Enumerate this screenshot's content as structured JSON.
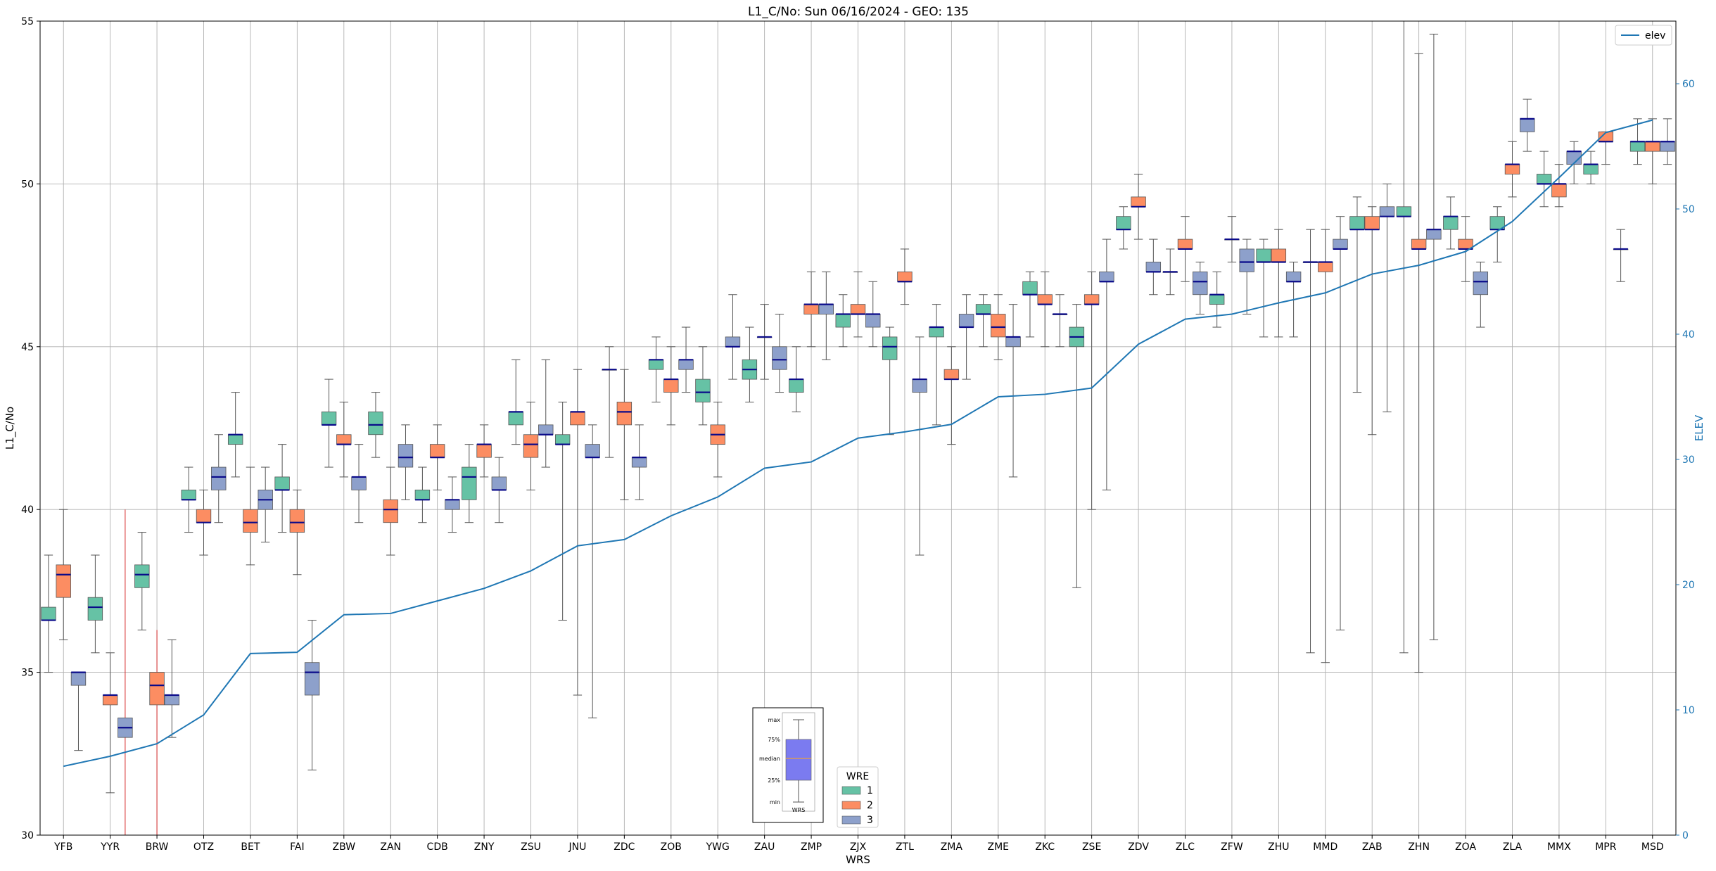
{
  "chart_data": {
    "type": "box",
    "title": "L1_C/No: Sun 06/16/2024 - GEO: 135",
    "xlabel": "WRS",
    "ylabel": "L1_C/No",
    "y2label": "ELEV",
    "ylim": [
      30,
      55
    ],
    "y2lim": [
      0,
      65
    ],
    "yticks": [
      30,
      35,
      40,
      45,
      50,
      55
    ],
    "y2ticks": [
      0,
      10,
      20,
      30,
      40,
      50,
      60
    ],
    "grid": true,
    "categories": [
      "YFB",
      "YYR",
      "BRW",
      "OTZ",
      "BET",
      "FAI",
      "ZBW",
      "ZAN",
      "CDB",
      "ZNY",
      "ZSU",
      "JNU",
      "ZDC",
      "ZOB",
      "YWG",
      "ZAU",
      "ZMP",
      "ZJX",
      "ZTL",
      "ZMA",
      "ZME",
      "ZKC",
      "ZSE",
      "ZDV",
      "ZLC",
      "ZFW",
      "ZHU",
      "MMD",
      "ZAB",
      "ZHN",
      "ZOA",
      "ZLA",
      "MMX",
      "MPR",
      "MSD"
    ],
    "wre_legend": {
      "title": "WRE",
      "entries": [
        "1",
        "2",
        "3"
      ],
      "placement": "lower-center"
    },
    "wre_colors": {
      "1": "#66c2a5",
      "2": "#fc8d62",
      "3": "#8da0cb"
    },
    "elev_legend": {
      "entries": [
        "elev"
      ],
      "placement": "top-right"
    },
    "elev_color": "#1f77b4",
    "boxes": [
      {
        "cat": "YFB",
        "wre": "1",
        "min": 35.0,
        "q1": 36.6,
        "median": 36.6,
        "q3": 37.0,
        "max": 38.6
      },
      {
        "cat": "YFB",
        "wre": "2",
        "min": 36.0,
        "q1": 37.3,
        "median": 38.0,
        "q3": 38.3,
        "max": 40.0
      },
      {
        "cat": "YFB",
        "wre": "3",
        "min": 32.6,
        "q1": 34.6,
        "median": 35.0,
        "q3": 35.0,
        "max": 35.0
      },
      {
        "cat": "YYR",
        "wre": "1",
        "min": 35.6,
        "q1": 36.6,
        "median": 37.0,
        "q3": 37.3,
        "max": 38.6
      },
      {
        "cat": "YYR",
        "wre": "2",
        "min": 31.3,
        "q1": 34.0,
        "median": 34.3,
        "q3": 34.3,
        "max": 35.6
      },
      {
        "cat": "YYR",
        "wre": "3",
        "min": 30.0,
        "q1": 33.0,
        "median": 33.3,
        "q3": 33.6,
        "max": 40.0,
        "outlier_whisker": true
      },
      {
        "cat": "BRW",
        "wre": "1",
        "min": 36.3,
        "q1": 37.6,
        "median": 38.0,
        "q3": 38.3,
        "max": 39.3
      },
      {
        "cat": "BRW",
        "wre": "2",
        "min": 30.0,
        "q1": 34.0,
        "median": 34.6,
        "q3": 35.0,
        "max": 36.3,
        "outlier_whisker": true
      },
      {
        "cat": "BRW",
        "wre": "3",
        "min": 33.0,
        "q1": 34.0,
        "median": 34.3,
        "q3": 34.3,
        "max": 36.0
      },
      {
        "cat": "OTZ",
        "wre": "1",
        "min": 39.3,
        "q1": 40.3,
        "median": 40.3,
        "q3": 40.6,
        "max": 41.3
      },
      {
        "cat": "OTZ",
        "wre": "2",
        "min": 38.6,
        "q1": 39.6,
        "median": 39.6,
        "q3": 40.0,
        "max": 40.6
      },
      {
        "cat": "OTZ",
        "wre": "3",
        "min": 39.6,
        "q1": 40.6,
        "median": 41.0,
        "q3": 41.3,
        "max": 42.3
      },
      {
        "cat": "BET",
        "wre": "1",
        "min": 41.0,
        "q1": 42.0,
        "median": 42.3,
        "q3": 42.3,
        "max": 43.6
      },
      {
        "cat": "BET",
        "wre": "2",
        "min": 38.3,
        "q1": 39.3,
        "median": 39.6,
        "q3": 40.0,
        "max": 41.3
      },
      {
        "cat": "BET",
        "wre": "3",
        "min": 39.0,
        "q1": 40.0,
        "median": 40.3,
        "q3": 40.6,
        "max": 41.3
      },
      {
        "cat": "FAI",
        "wre": "1",
        "min": 39.3,
        "q1": 40.6,
        "median": 40.6,
        "q3": 41.0,
        "max": 42.0
      },
      {
        "cat": "FAI",
        "wre": "2",
        "min": 38.0,
        "q1": 39.3,
        "median": 39.6,
        "q3": 40.0,
        "max": 40.6
      },
      {
        "cat": "FAI",
        "wre": "3",
        "min": 32.0,
        "q1": 34.3,
        "median": 35.0,
        "q3": 35.3,
        "max": 36.6
      },
      {
        "cat": "ZBW",
        "wre": "1",
        "min": 41.3,
        "q1": 42.6,
        "median": 42.6,
        "q3": 43.0,
        "max": 44.0
      },
      {
        "cat": "ZBW",
        "wre": "2",
        "min": 41.0,
        "q1": 42.0,
        "median": 42.0,
        "q3": 42.3,
        "max": 43.3
      },
      {
        "cat": "ZBW",
        "wre": "3",
        "min": 39.6,
        "q1": 40.6,
        "median": 41.0,
        "q3": 41.0,
        "max": 42.0
      },
      {
        "cat": "ZAN",
        "wre": "1",
        "min": 41.6,
        "q1": 42.3,
        "median": 42.6,
        "q3": 43.0,
        "max": 43.6
      },
      {
        "cat": "ZAN",
        "wre": "2",
        "min": 38.6,
        "q1": 39.6,
        "median": 40.0,
        "q3": 40.3,
        "max": 41.3
      },
      {
        "cat": "ZAN",
        "wre": "3",
        "min": 40.3,
        "q1": 41.3,
        "median": 41.6,
        "q3": 42.0,
        "max": 42.6
      },
      {
        "cat": "CDB",
        "wre": "1",
        "min": 39.6,
        "q1": 40.3,
        "median": 40.3,
        "q3": 40.6,
        "max": 41.3
      },
      {
        "cat": "CDB",
        "wre": "2",
        "min": 40.6,
        "q1": 41.6,
        "median": 41.6,
        "q3": 42.0,
        "max": 42.6
      },
      {
        "cat": "CDB",
        "wre": "3",
        "min": 39.3,
        "q1": 40.0,
        "median": 40.3,
        "q3": 40.3,
        "max": 41.0
      },
      {
        "cat": "ZNY",
        "wre": "1",
        "min": 39.6,
        "q1": 40.3,
        "median": 41.0,
        "q3": 41.3,
        "max": 42.0
      },
      {
        "cat": "ZNY",
        "wre": "2",
        "min": 41.0,
        "q1": 41.6,
        "median": 42.0,
        "q3": 42.0,
        "max": 42.6
      },
      {
        "cat": "ZNY",
        "wre": "3",
        "min": 39.6,
        "q1": 40.6,
        "median": 40.6,
        "q3": 41.0,
        "max": 41.6
      },
      {
        "cat": "ZSU",
        "wre": "1",
        "min": 42.0,
        "q1": 42.6,
        "median": 43.0,
        "q3": 43.0,
        "max": 44.6
      },
      {
        "cat": "ZSU",
        "wre": "2",
        "min": 40.6,
        "q1": 41.6,
        "median": 42.0,
        "q3": 42.3,
        "max": 43.3
      },
      {
        "cat": "ZSU",
        "wre": "3",
        "min": 41.3,
        "q1": 42.3,
        "median": 42.3,
        "q3": 42.6,
        "max": 44.6
      },
      {
        "cat": "JNU",
        "wre": "1",
        "min": 36.6,
        "q1": 42.0,
        "median": 42.0,
        "q3": 42.3,
        "max": 43.3
      },
      {
        "cat": "JNU",
        "wre": "2",
        "min": 34.3,
        "q1": 42.6,
        "median": 43.0,
        "q3": 43.0,
        "max": 44.3
      },
      {
        "cat": "JNU",
        "wre": "3",
        "min": 33.6,
        "q1": 41.6,
        "median": 41.6,
        "q3": 42.0,
        "max": 42.6
      },
      {
        "cat": "ZDC",
        "wre": "1",
        "min": 41.6,
        "q1": 44.3,
        "median": 44.3,
        "q3": 44.3,
        "max": 45.0
      },
      {
        "cat": "ZDC",
        "wre": "2",
        "min": 40.3,
        "q1": 42.6,
        "median": 43.0,
        "q3": 43.3,
        "max": 44.3
      },
      {
        "cat": "ZDC",
        "wre": "3",
        "min": 40.3,
        "q1": 41.3,
        "median": 41.6,
        "q3": 41.6,
        "max": 42.6
      },
      {
        "cat": "ZOB",
        "wre": "1",
        "min": 43.3,
        "q1": 44.3,
        "median": 44.6,
        "q3": 44.6,
        "max": 45.3
      },
      {
        "cat": "ZOB",
        "wre": "2",
        "min": 42.6,
        "q1": 43.6,
        "median": 44.0,
        "q3": 44.0,
        "max": 45.0
      },
      {
        "cat": "ZOB",
        "wre": "3",
        "min": 43.6,
        "q1": 44.3,
        "median": 44.6,
        "q3": 44.6,
        "max": 45.6
      },
      {
        "cat": "YWG",
        "wre": "1",
        "min": 42.6,
        "q1": 43.3,
        "median": 43.6,
        "q3": 44.0,
        "max": 45.0
      },
      {
        "cat": "YWG",
        "wre": "2",
        "min": 41.0,
        "q1": 42.0,
        "median": 42.3,
        "q3": 42.6,
        "max": 43.3
      },
      {
        "cat": "YWG",
        "wre": "3",
        "min": 44.0,
        "q1": 45.0,
        "median": 45.0,
        "q3": 45.3,
        "max": 46.6
      },
      {
        "cat": "ZAU",
        "wre": "1",
        "min": 43.3,
        "q1": 44.0,
        "median": 44.3,
        "q3": 44.6,
        "max": 45.6
      },
      {
        "cat": "ZAU",
        "wre": "2",
        "min": 44.0,
        "q1": 45.3,
        "median": 45.3,
        "q3": 45.3,
        "max": 46.3
      },
      {
        "cat": "ZAU",
        "wre": "3",
        "min": 43.6,
        "q1": 44.3,
        "median": 44.6,
        "q3": 45.0,
        "max": 46.0
      },
      {
        "cat": "ZMP",
        "wre": "1",
        "min": 43.0,
        "q1": 43.6,
        "median": 44.0,
        "q3": 44.0,
        "max": 45.0
      },
      {
        "cat": "ZMP",
        "wre": "2",
        "min": 45.0,
        "q1": 46.0,
        "median": 46.3,
        "q3": 46.3,
        "max": 47.3
      },
      {
        "cat": "ZMP",
        "wre": "3",
        "min": 44.6,
        "q1": 46.0,
        "median": 46.3,
        "q3": 46.3,
        "max": 47.3
      },
      {
        "cat": "ZJX",
        "wre": "1",
        "min": 45.0,
        "q1": 45.6,
        "median": 46.0,
        "q3": 46.0,
        "max": 46.6
      },
      {
        "cat": "ZJX",
        "wre": "2",
        "min": 45.3,
        "q1": 46.0,
        "median": 46.0,
        "q3": 46.3,
        "max": 47.3
      },
      {
        "cat": "ZJX",
        "wre": "3",
        "min": 45.0,
        "q1": 45.6,
        "median": 46.0,
        "q3": 46.0,
        "max": 47.0
      },
      {
        "cat": "ZTL",
        "wre": "1",
        "min": 42.3,
        "q1": 44.6,
        "median": 45.0,
        "q3": 45.3,
        "max": 45.6
      },
      {
        "cat": "ZTL",
        "wre": "2",
        "min": 46.3,
        "q1": 47.0,
        "median": 47.0,
        "q3": 47.3,
        "max": 48.0
      },
      {
        "cat": "ZTL",
        "wre": "3",
        "min": 38.6,
        "q1": 43.6,
        "median": 44.0,
        "q3": 44.0,
        "max": 45.3
      },
      {
        "cat": "ZMA",
        "wre": "1",
        "min": 42.6,
        "q1": 45.3,
        "median": 45.6,
        "q3": 45.6,
        "max": 46.3
      },
      {
        "cat": "ZMA",
        "wre": "2",
        "min": 42.0,
        "q1": 44.0,
        "median": 44.0,
        "q3": 44.3,
        "max": 45.0
      },
      {
        "cat": "ZMA",
        "wre": "3",
        "min": 44.0,
        "q1": 45.6,
        "median": 45.6,
        "q3": 46.0,
        "max": 46.6
      },
      {
        "cat": "ZME",
        "wre": "1",
        "min": 45.0,
        "q1": 46.0,
        "median": 46.0,
        "q3": 46.3,
        "max": 46.6
      },
      {
        "cat": "ZME",
        "wre": "2",
        "min": 44.6,
        "q1": 45.3,
        "median": 45.6,
        "q3": 46.0,
        "max": 46.6
      },
      {
        "cat": "ZME",
        "wre": "3",
        "min": 41.0,
        "q1": 45.0,
        "median": 45.3,
        "q3": 45.3,
        "max": 46.3
      },
      {
        "cat": "ZKC",
        "wre": "1",
        "min": 45.3,
        "q1": 46.6,
        "median": 46.6,
        "q3": 47.0,
        "max": 47.3
      },
      {
        "cat": "ZKC",
        "wre": "2",
        "min": 45.0,
        "q1": 46.3,
        "median": 46.3,
        "q3": 46.6,
        "max": 47.3
      },
      {
        "cat": "ZKC",
        "wre": "3",
        "min": 45.0,
        "q1": 46.0,
        "median": 46.0,
        "q3": 46.0,
        "max": 46.6
      },
      {
        "cat": "ZSE",
        "wre": "1",
        "min": 37.6,
        "q1": 45.0,
        "median": 45.3,
        "q3": 45.6,
        "max": 46.3
      },
      {
        "cat": "ZSE",
        "wre": "2",
        "min": 40.0,
        "q1": 46.3,
        "median": 46.3,
        "q3": 46.6,
        "max": 47.3
      },
      {
        "cat": "ZSE",
        "wre": "3",
        "min": 40.6,
        "q1": 47.0,
        "median": 47.0,
        "q3": 47.3,
        "max": 48.3
      },
      {
        "cat": "ZDV",
        "wre": "1",
        "min": 48.0,
        "q1": 48.6,
        "median": 48.6,
        "q3": 49.0,
        "max": 49.3
      },
      {
        "cat": "ZDV",
        "wre": "2",
        "min": 48.3,
        "q1": 49.3,
        "median": 49.3,
        "q3": 49.6,
        "max": 50.3
      },
      {
        "cat": "ZDV",
        "wre": "3",
        "min": 46.6,
        "q1": 47.3,
        "median": 47.3,
        "q3": 47.6,
        "max": 48.3
      },
      {
        "cat": "ZLC",
        "wre": "1",
        "min": 46.6,
        "q1": 47.3,
        "median": 47.3,
        "q3": 47.3,
        "max": 48.0
      },
      {
        "cat": "ZLC",
        "wre": "2",
        "min": 47.0,
        "q1": 48.0,
        "median": 48.0,
        "q3": 48.3,
        "max": 49.0
      },
      {
        "cat": "ZLC",
        "wre": "3",
        "min": 46.0,
        "q1": 46.6,
        "median": 47.0,
        "q3": 47.3,
        "max": 47.6
      },
      {
        "cat": "ZFW",
        "wre": "1",
        "min": 45.6,
        "q1": 46.3,
        "median": 46.6,
        "q3": 46.6,
        "max": 47.3
      },
      {
        "cat": "ZFW",
        "wre": "2",
        "min": 47.6,
        "q1": 48.3,
        "median": 48.3,
        "q3": 48.3,
        "max": 49.0
      },
      {
        "cat": "ZFW",
        "wre": "3",
        "min": 46.0,
        "q1": 47.3,
        "median": 47.6,
        "q3": 48.0,
        "max": 48.3
      },
      {
        "cat": "ZHU",
        "wre": "1",
        "min": 45.3,
        "q1": 47.6,
        "median": 47.6,
        "q3": 48.0,
        "max": 48.3
      },
      {
        "cat": "ZHU",
        "wre": "2",
        "min": 45.3,
        "q1": 47.6,
        "median": 47.6,
        "q3": 48.0,
        "max": 48.6
      },
      {
        "cat": "ZHU",
        "wre": "3",
        "min": 45.3,
        "q1": 47.0,
        "median": 47.0,
        "q3": 47.3,
        "max": 47.6
      },
      {
        "cat": "MMD",
        "wre": "1",
        "min": 35.6,
        "q1": 47.6,
        "median": 47.6,
        "q3": 47.6,
        "max": 48.6
      },
      {
        "cat": "MMD",
        "wre": "2",
        "min": 35.3,
        "q1": 47.3,
        "median": 47.6,
        "q3": 47.6,
        "max": 48.6
      },
      {
        "cat": "MMD",
        "wre": "3",
        "min": 36.3,
        "q1": 48.0,
        "median": 48.0,
        "q3": 48.3,
        "max": 49.0
      },
      {
        "cat": "ZAB",
        "wre": "1",
        "min": 43.6,
        "q1": 48.6,
        "median": 48.6,
        "q3": 49.0,
        "max": 49.6
      },
      {
        "cat": "ZAB",
        "wre": "2",
        "min": 42.3,
        "q1": 48.6,
        "median": 48.6,
        "q3": 49.0,
        "max": 49.3
      },
      {
        "cat": "ZAB",
        "wre": "3",
        "min": 43.0,
        "q1": 49.0,
        "median": 49.0,
        "q3": 49.3,
        "max": 50.0
      },
      {
        "cat": "ZHN",
        "wre": "1",
        "min": 35.6,
        "q1": 49.0,
        "median": 49.0,
        "q3": 49.3,
        "max": 55.0
      },
      {
        "cat": "ZHN",
        "wre": "2",
        "min": 35.0,
        "q1": 48.0,
        "median": 48.0,
        "q3": 48.3,
        "max": 54.0
      },
      {
        "cat": "ZHN",
        "wre": "3",
        "min": 36.0,
        "q1": 48.3,
        "median": 48.6,
        "q3": 48.6,
        "max": 54.6
      },
      {
        "cat": "ZOA",
        "wre": "1",
        "min": 48.0,
        "q1": 48.6,
        "median": 49.0,
        "q3": 49.0,
        "max": 49.6
      },
      {
        "cat": "ZOA",
        "wre": "2",
        "min": 47.0,
        "q1": 48.0,
        "median": 48.0,
        "q3": 48.3,
        "max": 49.0
      },
      {
        "cat": "ZOA",
        "wre": "3",
        "min": 45.6,
        "q1": 46.6,
        "median": 47.0,
        "q3": 47.3,
        "max": 47.6
      },
      {
        "cat": "ZLA",
        "wre": "1",
        "min": 47.6,
        "q1": 48.6,
        "median": 48.6,
        "q3": 49.0,
        "max": 49.3
      },
      {
        "cat": "ZLA",
        "wre": "2",
        "min": 49.6,
        "q1": 50.3,
        "median": 50.6,
        "q3": 50.6,
        "max": 51.3
      },
      {
        "cat": "ZLA",
        "wre": "3",
        "min": 51.0,
        "q1": 51.6,
        "median": 52.0,
        "q3": 52.0,
        "max": 52.6
      },
      {
        "cat": "MMX",
        "wre": "1",
        "min": 49.3,
        "q1": 50.0,
        "median": 50.0,
        "q3": 50.3,
        "max": 51.0
      },
      {
        "cat": "MMX",
        "wre": "2",
        "min": 49.3,
        "q1": 49.6,
        "median": 50.0,
        "q3": 50.0,
        "max": 50.6
      },
      {
        "cat": "MMX",
        "wre": "3",
        "min": 50.0,
        "q1": 50.6,
        "median": 51.0,
        "q3": 51.0,
        "max": 51.3
      },
      {
        "cat": "MPR",
        "wre": "1",
        "min": 50.0,
        "q1": 50.3,
        "median": 50.6,
        "q3": 50.6,
        "max": 51.0
      },
      {
        "cat": "MPR",
        "wre": "2",
        "min": 50.6,
        "q1": 51.3,
        "median": 51.3,
        "q3": 51.6,
        "max": 51.6
      },
      {
        "cat": "MPR",
        "wre": "3",
        "min": 47.0,
        "q1": 48.0,
        "median": 48.0,
        "q3": 48.0,
        "max": 48.6
      },
      {
        "cat": "MSD",
        "wre": "1",
        "min": 50.6,
        "q1": 51.0,
        "median": 51.3,
        "q3": 51.3,
        "max": 52.0
      },
      {
        "cat": "MSD",
        "wre": "2",
        "min": 50.0,
        "q1": 51.0,
        "median": 51.3,
        "q3": 51.3,
        "max": 52.0
      },
      {
        "cat": "MSD",
        "wre": "3",
        "min": 50.6,
        "q1": 51.0,
        "median": 51.3,
        "q3": 51.3,
        "max": 52.0
      }
    ],
    "elev": {
      "name": "elev",
      "x": [
        "YFB",
        "YYR",
        "BRW",
        "OTZ",
        "BET",
        "FAI",
        "ZBW",
        "ZAN",
        "CDB",
        "ZNY",
        "ZSU",
        "JNU",
        "ZDC",
        "ZOB",
        "YWG",
        "ZAU",
        "ZMP",
        "ZJX",
        "ZTL",
        "ZMA",
        "ZME",
        "ZKC",
        "ZSE",
        "ZDV",
        "ZLC",
        "ZFW",
        "ZHU",
        "MMD",
        "ZAB",
        "ZHN",
        "ZOA",
        "ZLA",
        "MMX",
        "MPR",
        "MSD"
      ],
      "values": [
        5.5,
        6.3,
        7.3,
        9.6,
        14.5,
        14.6,
        17.6,
        17.7,
        18.7,
        19.7,
        21.1,
        23.1,
        23.6,
        25.5,
        27.0,
        29.3,
        29.8,
        31.7,
        32.2,
        32.8,
        35.0,
        35.2,
        35.7,
        39.2,
        41.2,
        41.6,
        42.5,
        43.3,
        44.8,
        45.5,
        46.6,
        49.0,
        52.5,
        56.1,
        57.1
      ]
    },
    "key_inset": {
      "labels": [
        "max",
        "75%",
        "median",
        "25%",
        "min",
        "WRS"
      ]
    }
  }
}
